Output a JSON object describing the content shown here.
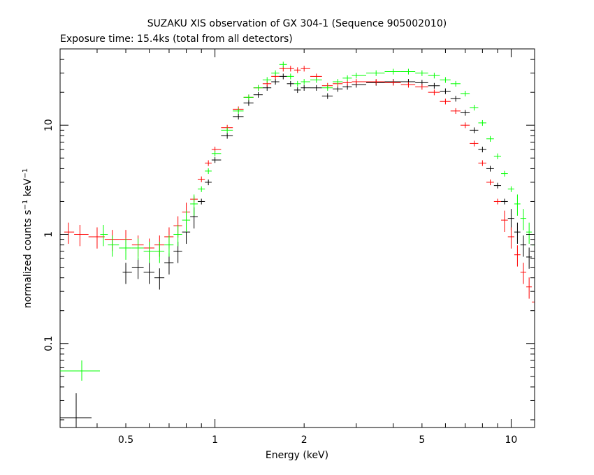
{
  "title": "SUZAKU XIS observation of GX 304-1 (Sequence 905002010)",
  "subtitle": "Exposure time: 15.4ks (total from all detectors)",
  "chart_data": {
    "type": "scatter",
    "xlabel": "Energy (keV)",
    "ylabel_main": "normalized counts s",
    "ylabel_sup1": "−1",
    "ylabel_mid": " keV",
    "ylabel_sup2": "−1",
    "xscale": "log",
    "yscale": "log",
    "xlim": [
      0.3,
      12
    ],
    "ylim": [
      0.017,
      50
    ],
    "xticks_labeled": [
      {
        "value": 0.5,
        "label": "0.5"
      },
      {
        "value": 1,
        "label": "1"
      },
      {
        "value": 2,
        "label": "2"
      },
      {
        "value": 5,
        "label": "5"
      },
      {
        "value": 10,
        "label": "10"
      }
    ],
    "yticks_labeled": [
      {
        "value": 0.1,
        "label": "0.1"
      },
      {
        "value": 1,
        "label": "1"
      },
      {
        "value": 10,
        "label": "10"
      }
    ],
    "series": [
      {
        "color": "#000000",
        "x": [
          0.5,
          0.55,
          0.6,
          0.65,
          0.7,
          0.75,
          0.8,
          0.85,
          0.9,
          0.95,
          1.0,
          1.1,
          1.2,
          1.3,
          1.4,
          1.5,
          1.6,
          1.7,
          1.8,
          1.9,
          2.0,
          2.2,
          2.4,
          2.6,
          2.8,
          3.0,
          3.5,
          4.0,
          4.5,
          5.0,
          5.5,
          6.0,
          6.5,
          7.0,
          7.5,
          8.0,
          8.5,
          9.0,
          9.5,
          10.0,
          10.5,
          11.0,
          11.5,
          12.0
        ],
        "y": [
          0.45,
          0.5,
          0.45,
          0.4,
          0.55,
          0.7,
          1.05,
          1.45,
          2.0,
          3.0,
          4.8,
          8.0,
          12.0,
          16.0,
          19.0,
          22.0,
          25.0,
          28.0,
          24.0,
          21.0,
          22.0,
          22.0,
          18.5,
          21.5,
          22.5,
          23.5,
          24.5,
          25.0,
          25.0,
          24.5,
          23.0,
          20.5,
          17.5,
          13.0,
          9.0,
          6.0,
          4.0,
          2.8,
          2.0,
          1.4,
          1.05,
          0.8,
          0.62,
          0.5
        ]
      },
      {
        "color": "#ff0000",
        "x": [
          0.3,
          0.32,
          0.35,
          0.4,
          0.45,
          0.5,
          0.55,
          0.6,
          0.65,
          0.7,
          0.75,
          0.8,
          0.85,
          0.9,
          0.95,
          1.0,
          1.1,
          1.2,
          1.3,
          1.4,
          1.5,
          1.6,
          1.7,
          1.8,
          1.9,
          2.0,
          2.2,
          2.4,
          2.6,
          2.8,
          3.0,
          3.5,
          4.0,
          4.5,
          5.0,
          5.5,
          6.0,
          6.5,
          7.0,
          7.5,
          8.0,
          8.5,
          9.0,
          9.5,
          10.0,
          10.5,
          11.0,
          11.5,
          12.0
        ],
        "y": [
          1.0,
          1.05,
          1.0,
          0.95,
          0.9,
          0.9,
          0.8,
          0.75,
          0.8,
          0.95,
          1.2,
          1.6,
          2.1,
          3.2,
          4.5,
          6.0,
          9.5,
          14.0,
          18.0,
          22.0,
          24.0,
          28.0,
          33.0,
          33.0,
          32.0,
          33.0,
          28.0,
          23.0,
          24.0,
          24.5,
          25.0,
          25.0,
          24.5,
          23.5,
          22.5,
          20.0,
          16.5,
          13.5,
          10.0,
          6.8,
          4.5,
          3.0,
          2.0,
          1.35,
          0.95,
          0.65,
          0.45,
          0.33,
          0.24
        ]
      },
      {
        "color": "#00ff00",
        "x": [
          0.42,
          0.45,
          0.5,
          0.55,
          0.6,
          0.65,
          0.7,
          0.75,
          0.8,
          0.85,
          0.9,
          0.95,
          1.0,
          1.1,
          1.2,
          1.3,
          1.4,
          1.5,
          1.6,
          1.7,
          1.8,
          1.9,
          2.0,
          2.2,
          2.4,
          2.6,
          2.8,
          3.0,
          3.5,
          4.0,
          4.5,
          5.0,
          5.5,
          6.0,
          6.5,
          7.0,
          7.5,
          8.0,
          8.5,
          9.0,
          9.5,
          10.0,
          10.5,
          11.0,
          11.5,
          12.0
        ],
        "y": [
          1.0,
          0.8,
          0.75,
          0.75,
          0.7,
          0.7,
          0.8,
          1.0,
          1.35,
          1.9,
          2.6,
          3.8,
          5.5,
          9.0,
          13.5,
          18.0,
          22.0,
          26.0,
          30.0,
          36.0,
          28.0,
          24.0,
          25.0,
          26.0,
          22.0,
          25.0,
          27.0,
          28.5,
          30.0,
          31.0,
          31.0,
          30.0,
          28.5,
          26.0,
          24.0,
          19.5,
          14.5,
          10.5,
          7.5,
          5.2,
          3.6,
          2.6,
          1.9,
          1.4,
          1.05,
          0.8
        ]
      }
    ]
  }
}
